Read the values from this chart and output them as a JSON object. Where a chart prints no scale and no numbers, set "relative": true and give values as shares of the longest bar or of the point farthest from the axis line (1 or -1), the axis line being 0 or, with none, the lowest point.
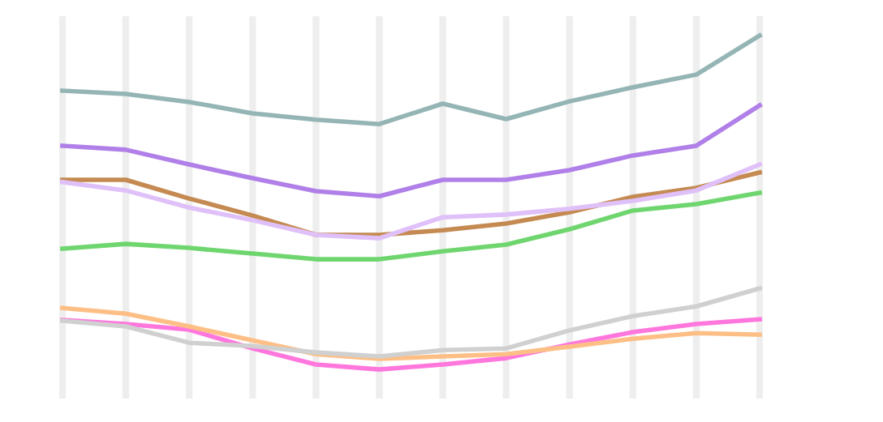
{
  "chart_data": {
    "type": "line",
    "relative": true,
    "grid": "x",
    "legend": false,
    "marker": "none",
    "line_style": "solid",
    "categories": [
      null,
      null,
      null,
      null,
      null,
      null,
      null,
      null,
      null,
      null,
      null,
      null
    ],
    "series": [
      {
        "color": "#ff77dd",
        "values": [
          0.148,
          0.136,
          0.119,
          0.063,
          0.015,
          0,
          0.015,
          0.034,
          0.075,
          0.112,
          0.136,
          0.15
        ]
      },
      {
        "color": "#fdbf86",
        "values": [
          0.184,
          0.167,
          0.129,
          0.087,
          0.046,
          0.032,
          0.039,
          0.046,
          0.068,
          0.092,
          0.109,
          0.104
        ]
      },
      {
        "color": "#d0d0d0",
        "values": [
          0.146,
          0.129,
          0.08,
          0.07,
          0.051,
          0.039,
          0.058,
          0.063,
          0.117,
          0.16,
          0.189,
          0.243
        ]
      },
      {
        "color": "#6fd66f",
        "values": [
          0.362,
          0.376,
          0.364,
          0.347,
          0.33,
          0.33,
          0.354,
          0.374,
          0.42,
          0.476,
          0.495,
          0.529
        ]
      },
      {
        "color": "#c48a52",
        "values": [
          0.568,
          0.568,
          0.512,
          0.461,
          0.403,
          0.403,
          0.417,
          0.437,
          0.471,
          0.517,
          0.544,
          0.59
        ]
      },
      {
        "color": "#e0c0f8",
        "values": [
          0.561,
          0.536,
          0.485,
          0.447,
          0.403,
          0.393,
          0.456,
          0.464,
          0.481,
          0.505,
          0.536,
          0.614
        ]
      },
      {
        "color": "#b080e8",
        "values": [
          0.67,
          0.658,
          0.614,
          0.573,
          0.534,
          0.519,
          0.568,
          0.568,
          0.597,
          0.641,
          0.67,
          0.791
        ]
      },
      {
        "color": "#95b5b5",
        "values": [
          0.835,
          0.825,
          0.801,
          0.767,
          0.748,
          0.735,
          0.796,
          0.75,
          0.803,
          0.845,
          0.883,
          1
        ]
      }
    ]
  }
}
